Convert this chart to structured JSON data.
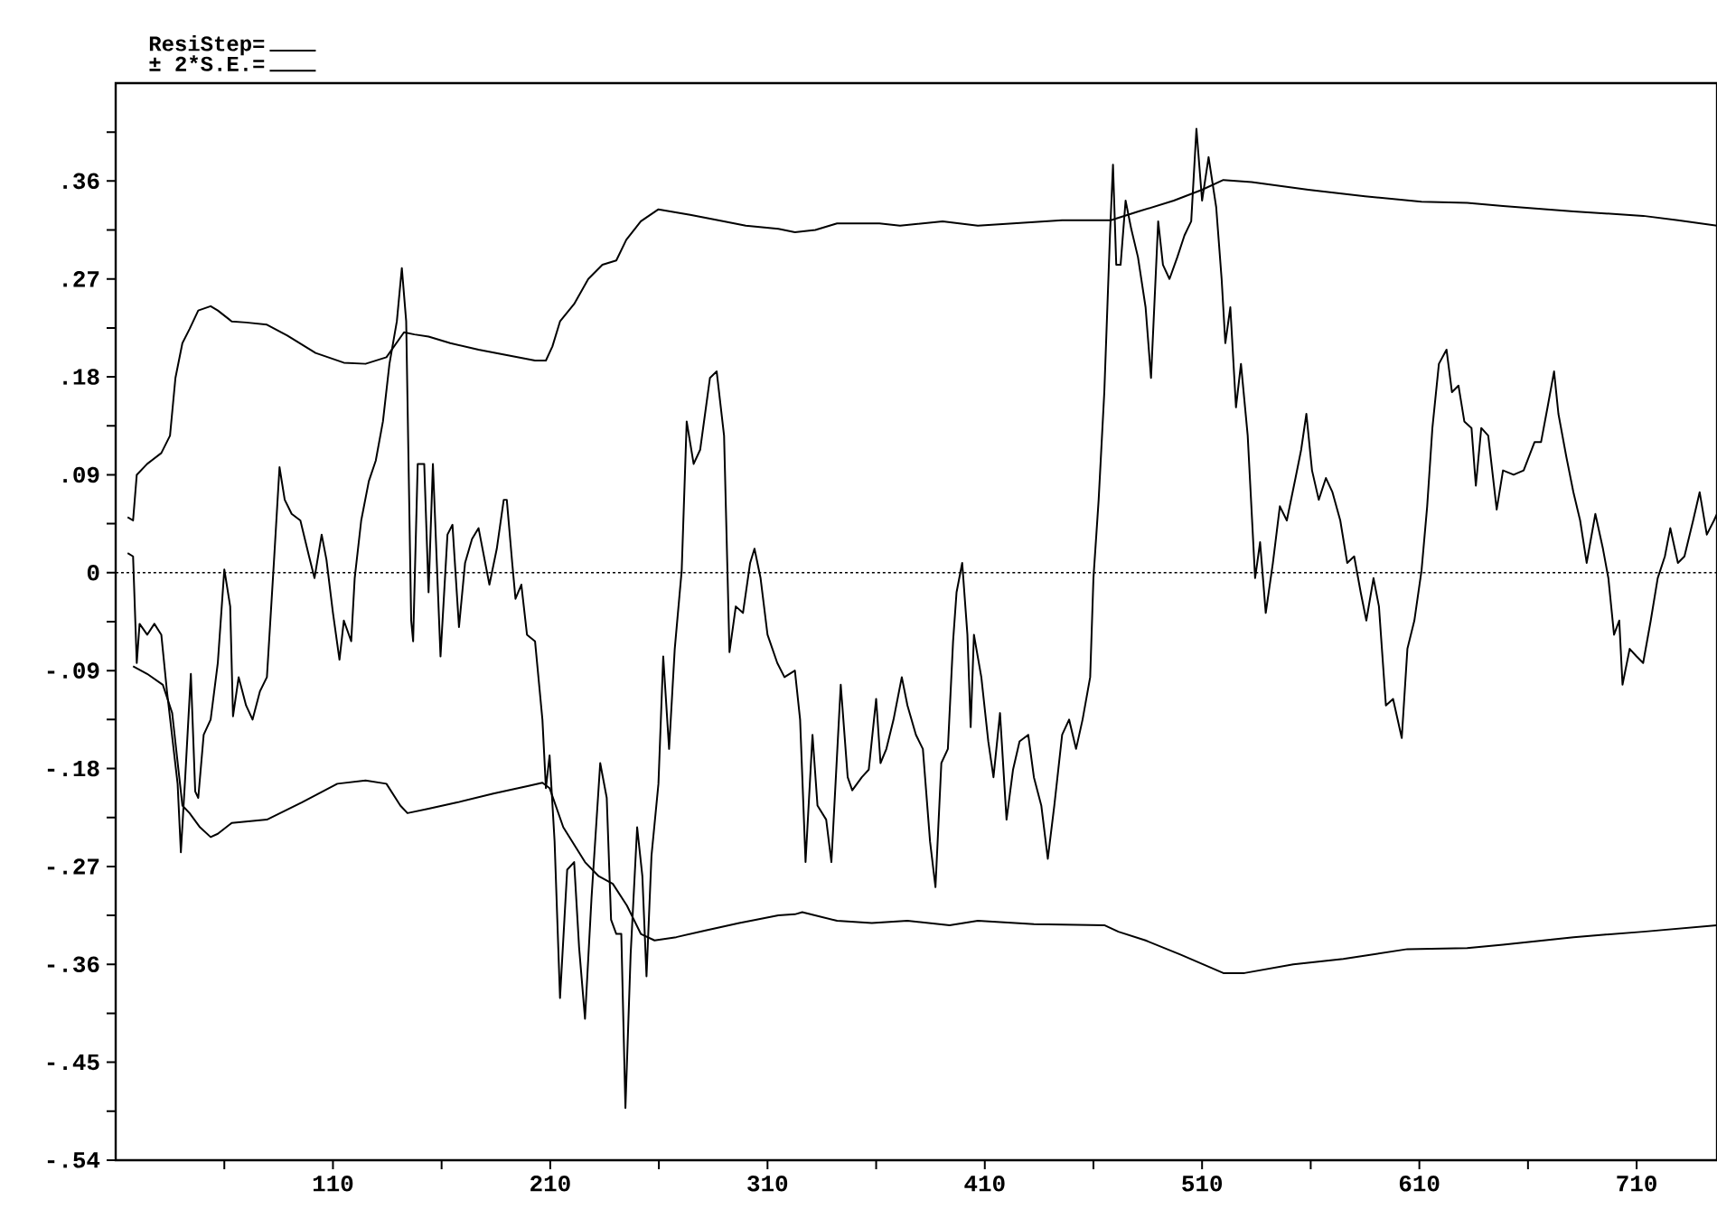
{
  "chart_data": {
    "type": "line",
    "legend": "top left",
    "xlim": [
      10,
      747
    ],
    "ylim": [
      -0.54,
      0.45
    ],
    "xticks": [
      {
        "value": 60,
        "label": null
      },
      110,
      {
        "value": 160,
        "label": null
      },
      210,
      {
        "value": 260,
        "label": null
      },
      310,
      {
        "value": 360,
        "label": null
      },
      410,
      {
        "value": 460,
        "label": null
      },
      510,
      {
        "value": 560,
        "label": null
      },
      610,
      {
        "value": 660,
        "label": null
      },
      710
    ],
    "yticks": [
      {
        "value": -0.54,
        "label": "-.54"
      },
      {
        "value": -0.495,
        "label": null
      },
      {
        "value": -0.45,
        "label": "-.45"
      },
      {
        "value": -0.405,
        "label": null
      },
      {
        "value": -0.36,
        "label": "-.36"
      },
      {
        "value": -0.315,
        "label": null
      },
      {
        "value": -0.27,
        "label": "-.27"
      },
      {
        "value": -0.225,
        "label": null
      },
      {
        "value": -0.18,
        "label": "-.18"
      },
      {
        "value": -0.135,
        "label": null
      },
      {
        "value": -0.09,
        "label": "-.09"
      },
      {
        "value": -0.045,
        "label": null
      },
      0,
      {
        "value": 0.045,
        "label": null
      },
      {
        "value": 0.09,
        "label": ".09"
      },
      {
        "value": 0.135,
        "label": null
      },
      {
        "value": 0.18,
        "label": ".18"
      },
      {
        "value": 0.225,
        "label": null
      },
      {
        "value": 0.27,
        "label": ".27"
      },
      {
        "value": 0.315,
        "label": null
      },
      {
        "value": 0.36,
        "label": ".36"
      },
      {
        "value": 0.405,
        "label": null
      }
    ],
    "ref_lines": [
      {
        "axis": "y",
        "value": 0,
        "line_style": "dotted",
        "color": "#000000"
      }
    ],
    "series": [
      {
        "name": "ResiStep=",
        "color": "#000000",
        "x": [
          15.5,
          18,
          19.7,
          21,
          24.5,
          27.8,
          31,
          33.6,
          37,
          38.5,
          40,
          42,
          44.6,
          46.6,
          48,
          50.5,
          53.7,
          57,
          60,
          62.7,
          64,
          66.6,
          70,
          73,
          76.4,
          79.6,
          82.8,
          85.4,
          87.8,
          91,
          95,
          99,
          101.5,
          104.8,
          107,
          110,
          113,
          115,
          118.4,
          120,
          123,
          126.5,
          129.7,
          133,
          136,
          139.4,
          141.7,
          143.7,
          146,
          146.9,
          149,
          152,
          154,
          156,
          159.5,
          162.7,
          165,
          168,
          170.8,
          174,
          177,
          182,
          185.4,
          188.6,
          190,
          192.5,
          194,
          196.7,
          199.3,
          203,
          206.4,
          208,
          209.7,
          212,
          214.5,
          217.8,
          221,
          223.3,
          226,
          229,
          233,
          236,
          238,
          240.4,
          242.7,
          244.6,
          247,
          250,
          252.4,
          254.3,
          256.6,
          259.8,
          262,
          264.7,
          267.3,
          270.5,
          272.8,
          276,
          279,
          283.5,
          286.6,
          290,
          292.5,
          295.4,
          298.7,
          302,
          304,
          306.8,
          310,
          314.5,
          317.8,
          322.6,
          325,
          327.5,
          330.7,
          333,
          337,
          339.4,
          343.7,
          346.9,
          349,
          353.4,
          356.6,
          360,
          362,
          364.7,
          368,
          371.8,
          374.4,
          378.3,
          381.5,
          384.8,
          387.3,
          390,
          393,
          395.4,
          397,
          399.6,
          402,
          403.5,
          405,
          408.4,
          411.6,
          414,
          417,
          420,
          423,
          426,
          430,
          432.6,
          436,
          439,
          442,
          445.6,
          448.8,
          452,
          455,
          458.5,
          460,
          462.4,
          465,
          467.6,
          469,
          470.5,
          472.5,
          474.8,
          477.4,
          480.5,
          484,
          486.5,
          489.8,
          492,
          495,
          498.6,
          501.9,
          505,
          507.4,
          510,
          513,
          516.5,
          519,
          520.7,
          523,
          525.6,
          527.9,
          531,
          534.4,
          536.7,
          539.3,
          542.6,
          545.8,
          549,
          553,
          555.6,
          558,
          560.6,
          563.7,
          567,
          570,
          573.6,
          576.8,
          580,
          583,
          585.6,
          588.9,
          591.4,
          594.6,
          597.9,
          601.9,
          604.5,
          607.7,
          611,
          613.6,
          616,
          619,
          622.5,
          625,
          628,
          630.7,
          634,
          636,
          638.5,
          641.7,
          645.6,
          648.5,
          653.4,
          658,
          663,
          666,
          669,
          672,
          674,
          677.6,
          680.9,
          684,
          687,
          691,
          694.5,
          697,
          699.6,
          702,
          703.5,
          706.8,
          710,
          713,
          716.5,
          719.7,
          723,
          725.5,
          729,
          732,
          736,
          739,
          742.3,
          745.6,
          747
        ],
        "values": [
          0.018,
          0.015,
          -0.083,
          -0.047,
          -0.057,
          -0.047,
          -0.057,
          -0.109,
          -0.168,
          -0.194,
          -0.257,
          -0.188,
          -0.093,
          -0.201,
          -0.207,
          -0.149,
          -0.135,
          -0.083,
          0.003,
          -0.031,
          -0.132,
          -0.096,
          -0.122,
          -0.135,
          -0.109,
          -0.096,
          0.009,
          0.097,
          0.067,
          0.054,
          0.048,
          0.015,
          -0.005,
          0.035,
          0.012,
          -0.037,
          -0.08,
          -0.044,
          -0.063,
          -0.005,
          0.048,
          0.084,
          0.103,
          0.139,
          0.192,
          0.231,
          0.28,
          0.231,
          -0.044,
          -0.063,
          0.1,
          0.1,
          -0.018,
          0.1,
          -0.077,
          0.035,
          0.044,
          -0.05,
          0.009,
          0.031,
          0.041,
          -0.011,
          0.022,
          0.067,
          0.067,
          0.009,
          -0.024,
          -0.011,
          -0.057,
          -0.063,
          -0.135,
          -0.198,
          -0.168,
          -0.247,
          -0.391,
          -0.273,
          -0.266,
          -0.345,
          -0.41,
          -0.299,
          -0.175,
          -0.207,
          -0.319,
          -0.332,
          -0.332,
          -0.492,
          -0.351,
          -0.234,
          -0.279,
          -0.371,
          -0.26,
          -0.194,
          -0.077,
          -0.162,
          -0.07,
          0.002,
          0.139,
          0.1,
          0.113,
          0.179,
          0.185,
          0.126,
          -0.073,
          -0.031,
          -0.037,
          0.009,
          0.022,
          -0.005,
          -0.057,
          -0.083,
          -0.096,
          -0.09,
          -0.135,
          -0.266,
          -0.149,
          -0.214,
          -0.227,
          -0.266,
          -0.103,
          -0.188,
          -0.2,
          -0.188,
          -0.181,
          -0.116,
          -0.175,
          -0.162,
          -0.135,
          -0.096,
          -0.122,
          -0.149,
          -0.162,
          -0.247,
          -0.289,
          -0.175,
          -0.162,
          -0.063,
          -0.018,
          0.009,
          -0.057,
          -0.142,
          -0.057,
          -0.096,
          -0.155,
          -0.188,
          -0.129,
          -0.227,
          -0.181,
          -0.155,
          -0.149,
          -0.188,
          -0.214,
          -0.263,
          -0.214,
          -0.149,
          -0.135,
          -0.162,
          -0.135,
          -0.096,
          -0.005,
          0.067,
          0.166,
          0.31,
          0.375,
          0.283,
          0.283,
          0.342,
          0.316,
          0.29,
          0.244,
          0.179,
          0.323,
          0.283,
          0.27,
          0.29,
          0.31,
          0.323,
          0.408,
          0.342,
          0.382,
          0.336,
          0.27,
          0.211,
          0.244,
          0.152,
          0.192,
          0.126,
          -0.005,
          0.028,
          -0.037,
          0.009,
          0.061,
          0.048,
          0.087,
          0.113,
          0.146,
          0.094,
          0.067,
          0.087,
          0.074,
          0.048,
          0.009,
          0.015,
          -0.018,
          -0.044,
          -0.005,
          -0.031,
          -0.122,
          -0.116,
          -0.152,
          -0.07,
          -0.044,
          0.002,
          0.061,
          0.133,
          0.192,
          0.205,
          0.166,
          0.172,
          0.139,
          0.133,
          0.08,
          0.133,
          0.126,
          0.058,
          0.094,
          0.09,
          0.094,
          0.12,
          0.12,
          0.152,
          0.185,
          0.146,
          0.107,
          0.074,
          0.048,
          0.009,
          0.054,
          0.022,
          -0.005,
          -0.057,
          -0.044,
          -0.103,
          -0.07,
          -0.077,
          -0.083,
          -0.044,
          -0.005,
          0.015,
          0.041,
          0.009,
          0.015,
          0.048,
          0.074,
          0.035,
          0.048,
          0.054
        ]
      },
      {
        "name": "± 2*S.E.=",
        "color": "#000000",
        "x": [
          15.5,
          18,
          19.7,
          24.5,
          31,
          35,
          37.5,
          40.7,
          44,
          48,
          53.7,
          57,
          63.4,
          70,
          79.6,
          89,
          102,
          115,
          125,
          134.6,
          142.7,
          147.5,
          154,
          164,
          177,
          190,
          203,
          208,
          211,
          214.5,
          221,
          227.5,
          234,
          240.4,
          245,
          251.7,
          259.8,
          274.4,
          287.3,
          300,
          315,
          322.6,
          332,
          342,
          361.5,
          371,
          390.6,
          406.8,
          423,
          445.6,
          468,
          480.7,
          497,
          510,
          519.8,
          532.8,
          558.9,
          585,
          611,
          632,
          648.5,
          681,
          713,
          729,
          747
        ],
        "values": [
          0.051,
          0.048,
          0.09,
          0.1,
          0.11,
          0.126,
          0.179,
          0.211,
          0.224,
          0.241,
          0.245,
          0.241,
          0.231,
          0.23,
          0.228,
          0.218,
          0.202,
          0.193,
          0.192,
          0.198,
          0.221,
          0.219,
          0.217,
          0.211,
          0.205,
          0.2,
          0.195,
          0.195,
          0.208,
          0.231,
          0.247,
          0.27,
          0.283,
          0.287,
          0.306,
          0.323,
          0.334,
          0.329,
          0.324,
          0.319,
          0.316,
          0.313,
          0.315,
          0.321,
          0.321,
          0.319,
          0.323,
          0.319,
          0.321,
          0.324,
          0.324,
          0.332,
          0.342,
          0.352,
          0.361,
          0.359,
          0.352,
          0.346,
          0.341,
          0.34,
          0.337,
          0.332,
          0.328,
          0.324,
          0.319
        ]
      },
      {
        "color": "#000000",
        "x": [
          18,
          24.5,
          31.7,
          36,
          40.7,
          44,
          48.8,
          53.7,
          57,
          63.4,
          79.6,
          95.8,
          112,
          125,
          134.6,
          141,
          144.3,
          154,
          167.6,
          183.8,
          200,
          206.4,
          209.7,
          216,
          226,
          232.3,
          238.8,
          245.3,
          251.7,
          258,
          268,
          281,
          297,
          315,
          322.6,
          326,
          342,
          358,
          374.4,
          393.8,
          406.8,
          432.6,
          465,
          471.5,
          484,
          500,
          519.8,
          529.5,
          552,
          575,
          604.5,
          632,
          648.5,
          681,
          713,
          747
        ],
        "values": [
          -0.086,
          -0.093,
          -0.103,
          -0.129,
          -0.214,
          -0.221,
          -0.234,
          -0.243,
          -0.24,
          -0.23,
          -0.227,
          -0.211,
          -0.194,
          -0.191,
          -0.194,
          -0.214,
          -0.221,
          -0.217,
          -0.211,
          -0.203,
          -0.196,
          -0.193,
          -0.198,
          -0.234,
          -0.266,
          -0.279,
          -0.286,
          -0.306,
          -0.332,
          -0.338,
          -0.335,
          -0.329,
          -0.322,
          -0.315,
          -0.314,
          -0.312,
          -0.32,
          -0.322,
          -0.32,
          -0.324,
          -0.32,
          -0.323,
          -0.324,
          -0.33,
          -0.338,
          -0.351,
          -0.368,
          -0.368,
          -0.36,
          -0.355,
          -0.346,
          -0.345,
          -0.342,
          -0.335,
          -0.33,
          -0.324
        ]
      }
    ]
  }
}
